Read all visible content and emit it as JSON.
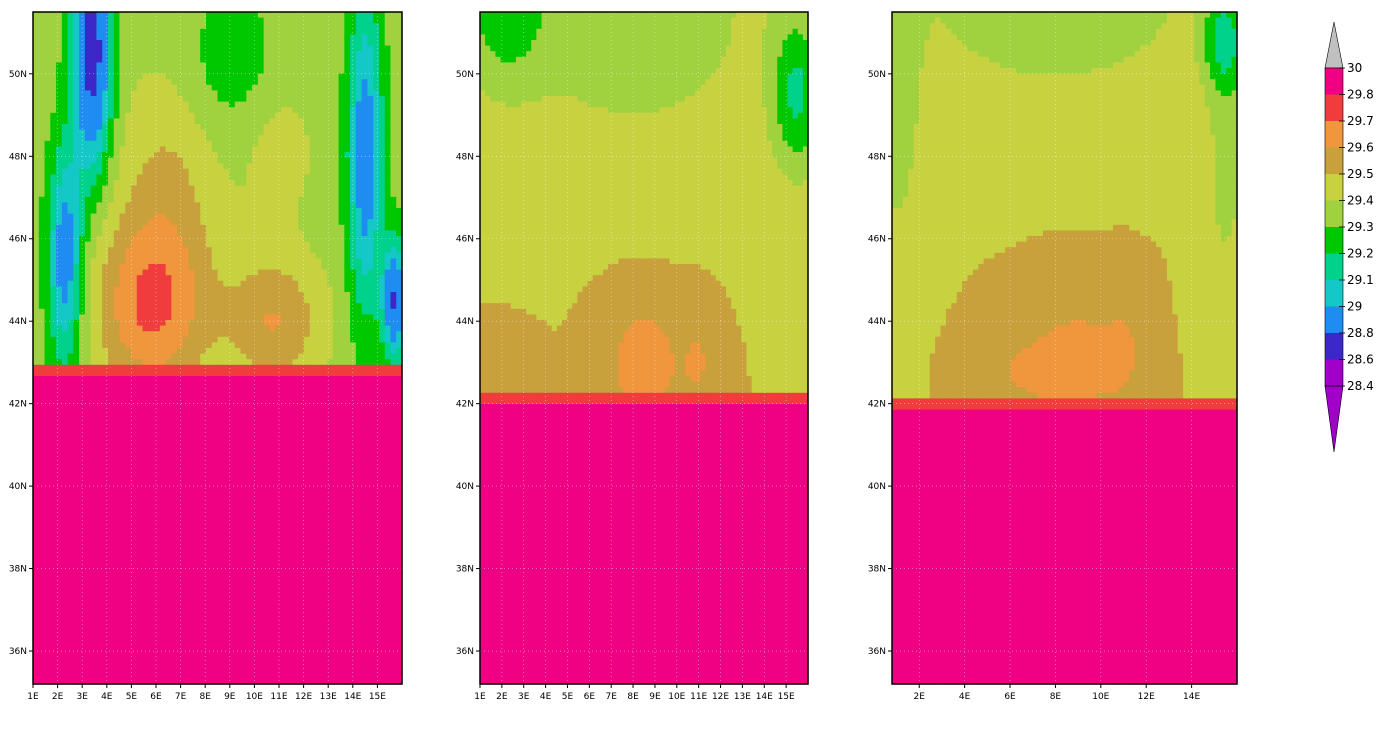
{
  "chart_data": {
    "type": "heatmap",
    "colorbar": {
      "levels": [
        28.4,
        28.6,
        28.8,
        29,
        29.1,
        29.2,
        29.3,
        29.4,
        29.5,
        29.6,
        29.7,
        29.8,
        30
      ],
      "labels": [
        "28.4",
        "28.6",
        "28.8",
        "29",
        "29.1",
        "29.2",
        "29.3",
        "29.4",
        "29.5",
        "29.6",
        "29.7",
        "29.8",
        "30"
      ],
      "colors": [
        "#a000c8",
        "#3c28c8",
        "#1e8cf0",
        "#14c8c8",
        "#00d28c",
        "#00c800",
        "#a0d240",
        "#c8d240",
        "#c8a03c",
        "#f0963c",
        "#f03c3c",
        "#f00082"
      ],
      "under_color": "#a000c8",
      "over_color": "#c0c0c0"
    },
    "panels": [
      {
        "name": "panel-1",
        "xlim": [
          1,
          16
        ],
        "ylim": [
          35.2,
          51.5
        ],
        "x_ticks": [
          1,
          2,
          3,
          4,
          5,
          6,
          7,
          8,
          9,
          10,
          11,
          12,
          13,
          14,
          15
        ],
        "x_tick_labels": [
          "1E",
          "2E",
          "3E",
          "4E",
          "5E",
          "6E",
          "7E",
          "8E",
          "9E",
          "10E",
          "11E",
          "12E",
          "13E",
          "14E",
          "15E"
        ],
        "y_ticks": [
          36,
          38,
          40,
          42,
          44,
          46,
          48,
          50
        ],
        "y_tick_labels": [
          "36N",
          "38N",
          "40N",
          "42N",
          "44N",
          "46N",
          "48N",
          "50N"
        ],
        "field": {
          "base": 29.35,
          "lowland_lat": 42.7,
          "lowland_value": 30,
          "edge_lat": 42.9,
          "edge_value": 29.75,
          "bumps": [
            {
              "x": 5.8,
              "y": 44.3,
              "sx": 2.3,
              "sy": 2.2,
              "amp": 0.35
            },
            {
              "x": 10.8,
              "y": 44.0,
              "sx": 2.0,
              "sy": 1.6,
              "amp": 0.25
            },
            {
              "x": 6.5,
              "y": 47.5,
              "sx": 2.2,
              "sy": 2.8,
              "amp": 0.15
            },
            {
              "x": 11.0,
              "y": 48.2,
              "sx": 1.5,
              "sy": 1.8,
              "amp": 0.1
            },
            {
              "x": 3.4,
              "y": 50.5,
              "sx": 0.8,
              "sy": 2.8,
              "amp": -0.65
            },
            {
              "x": 2.3,
              "y": 45.5,
              "sx": 0.7,
              "sy": 2.6,
              "amp": -0.45
            },
            {
              "x": 14.5,
              "y": 48.0,
              "sx": 0.7,
              "sy": 3.8,
              "amp": -0.45
            },
            {
              "x": 15.7,
              "y": 44.5,
              "sx": 0.5,
              "sy": 1.4,
              "amp": -0.55
            },
            {
              "x": 9.0,
              "y": 50.2,
              "sx": 2.0,
              "sy": 1.8,
              "amp": -0.12
            }
          ]
        }
      },
      {
        "name": "panel-2",
        "xlim": [
          1,
          16
        ],
        "ylim": [
          35.2,
          51.5
        ],
        "x_ticks": [
          1,
          2,
          3,
          4,
          5,
          6,
          7,
          8,
          9,
          10,
          11,
          12,
          13,
          14,
          15
        ],
        "x_tick_labels": [
          "1E",
          "2E",
          "3E",
          "4E",
          "5E",
          "6E",
          "7E",
          "8E",
          "9E",
          "10E",
          "11E",
          "12E",
          "13E",
          "14E",
          "15E"
        ],
        "y_ticks": [
          36,
          38,
          40,
          42,
          44,
          46,
          48,
          50
        ],
        "y_tick_labels": [
          "36N",
          "38N",
          "40N",
          "42N",
          "44N",
          "46N",
          "48N",
          "50N"
        ],
        "field": {
          "base": 29.5,
          "lowland_lat": 42.0,
          "lowland_value": 30,
          "edge_lat": 42.2,
          "edge_value": 29.75,
          "bumps": [
            {
              "x": 8.5,
              "y": 43.0,
              "sx": 1.6,
              "sy": 1.4,
              "amp": 0.18
            },
            {
              "x": 11.0,
              "y": 43.0,
              "sx": 0.8,
              "sy": 1.2,
              "amp": 0.1
            },
            {
              "x": 2.0,
              "y": 42.8,
              "sx": 1.2,
              "sy": 0.7,
              "amp": 0.1
            },
            {
              "x": 8.0,
              "y": 51.5,
              "sx": 6.0,
              "sy": 3.2,
              "amp": -0.18
            },
            {
              "x": 2.0,
              "y": 51.5,
              "sx": 2.0,
              "sy": 2.0,
              "amp": -0.2
            },
            {
              "x": 15.5,
              "y": 49.5,
              "sx": 1.2,
              "sy": 2.0,
              "amp": -0.3
            }
          ]
        }
      },
      {
        "name": "panel-3",
        "xlim": [
          0.8,
          16
        ],
        "ylim": [
          35.2,
          51.5
        ],
        "x_ticks": [
          2,
          4,
          6,
          8,
          10,
          12,
          14
        ],
        "x_tick_labels": [
          "2E",
          "4E",
          "6E",
          "8E",
          "10E",
          "12E",
          "14E"
        ],
        "y_ticks": [
          36,
          38,
          40,
          42,
          44,
          46,
          48,
          50
        ],
        "y_tick_labels": [
          "36N",
          "38N",
          "40N",
          "42N",
          "44N",
          "46N",
          "48N",
          "50N"
        ],
        "field": {
          "base": 29.5,
          "lowland_lat": 41.9,
          "lowland_value": 30,
          "edge_lat": 42.1,
          "edge_value": 29.75,
          "bumps": [
            {
              "x": 9.0,
              "y": 43.0,
              "sx": 1.8,
              "sy": 1.3,
              "amp": 0.17
            },
            {
              "x": 6.5,
              "y": 42.8,
              "sx": 2.0,
              "sy": 0.9,
              "amp": 0.1
            },
            {
              "x": 11.0,
              "y": 43.3,
              "sx": 0.8,
              "sy": 1.2,
              "amp": 0.1
            },
            {
              "x": 1.0,
              "y": 49.0,
              "sx": 1.2,
              "sy": 3.5,
              "amp": -0.15
            },
            {
              "x": 15.5,
              "y": 47.5,
              "sx": 1.0,
              "sy": 3.0,
              "amp": -0.13
            },
            {
              "x": 8.0,
              "y": 51.8,
              "sx": 6.0,
              "sy": 2.2,
              "amp": -0.2
            },
            {
              "x": 15.5,
              "y": 50.8,
              "sx": 1.0,
              "sy": 1.3,
              "amp": -0.3
            }
          ]
        }
      }
    ]
  }
}
